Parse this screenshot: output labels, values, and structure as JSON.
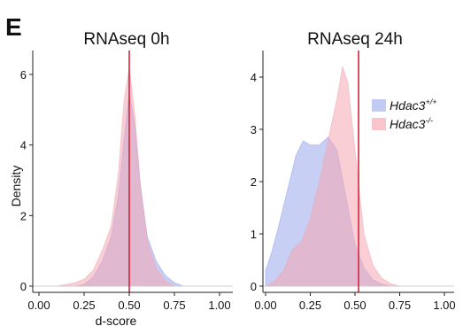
{
  "panel_label": "E",
  "shared": {
    "ylabel": "Density",
    "xlabel": "d-score",
    "colors": {
      "wild_type": "#8fa0ea",
      "knockout": "#f4a6b2",
      "overlap": "#b25c9c",
      "vline": "#d7263d"
    }
  },
  "legend": {
    "position": "top-right of right panel",
    "items": [
      {
        "base": "Hdac3",
        "sup": "+/+",
        "color": "#8fa0ea"
      },
      {
        "base": "Hdac3",
        "sup": "-/-",
        "color": "#f4a6b2"
      }
    ]
  },
  "chart_data": [
    {
      "type": "area",
      "title": "RNAseq 0h",
      "xlabel": "d-score",
      "ylabel": "Density",
      "xlim": [
        0,
        1
      ],
      "ylim": [
        -0.15,
        6.6
      ],
      "x_ticks": [
        "0.00",
        "0.25",
        "0.50",
        "0.75",
        "1.00"
      ],
      "y_ticks": [
        "0",
        "2",
        "4",
        "6"
      ],
      "x_tick_values": [
        0,
        0.25,
        0.5,
        0.75,
        1
      ],
      "y_tick_values": [
        0,
        2,
        4,
        6
      ],
      "vline": 0.5,
      "series": [
        {
          "group": "wild_type",
          "x": [
            0.2,
            0.25,
            0.3,
            0.35,
            0.4,
            0.44,
            0.47,
            0.5,
            0.53,
            0.56,
            0.6,
            0.65,
            0.7,
            0.75,
            0.8
          ],
          "y": [
            0,
            0.05,
            0.25,
            0.7,
            1.4,
            2.6,
            4.1,
            5.5,
            4.6,
            2.9,
            1.4,
            0.7,
            0.3,
            0.1,
            0
          ]
        },
        {
          "group": "knockout",
          "x": [
            0.1,
            0.15,
            0.2,
            0.25,
            0.3,
            0.35,
            0.4,
            0.44,
            0.47,
            0.5,
            0.53,
            0.56,
            0.6,
            0.65,
            0.7,
            0.75
          ],
          "y": [
            0,
            0.05,
            0.1,
            0.2,
            0.45,
            1.0,
            1.7,
            3.2,
            5.2,
            6.2,
            4.9,
            3.0,
            1.3,
            0.5,
            0.15,
            0
          ]
        }
      ]
    },
    {
      "type": "area",
      "title": "RNAseq 24h",
      "xlabel": "d-score",
      "ylabel": "",
      "xlim": [
        0,
        1
      ],
      "ylim": [
        -0.1,
        4.45
      ],
      "x_ticks": [
        "0.00",
        "0.25",
        "0.50",
        "0.75",
        "1.00"
      ],
      "y_ticks": [
        "0",
        "1",
        "2",
        "3",
        "4"
      ],
      "x_tick_values": [
        0,
        0.25,
        0.5,
        0.75,
        1
      ],
      "y_tick_values": [
        0,
        1,
        2,
        3,
        4
      ],
      "vline": 0.52,
      "series": [
        {
          "group": "wild_type",
          "x": [
            0.0,
            0.03,
            0.07,
            0.12,
            0.17,
            0.21,
            0.25,
            0.3,
            0.35,
            0.4,
            0.45,
            0.5,
            0.55,
            0.6,
            0.65,
            0.7
          ],
          "y": [
            0.3,
            0.6,
            1.1,
            1.8,
            2.5,
            2.78,
            2.7,
            2.7,
            2.85,
            2.6,
            1.7,
            0.8,
            0.35,
            0.12,
            0.04,
            0
          ]
        },
        {
          "group": "knockout",
          "x": [
            0.0,
            0.05,
            0.1,
            0.15,
            0.2,
            0.25,
            0.3,
            0.35,
            0.4,
            0.43,
            0.46,
            0.5,
            0.55,
            0.6,
            0.65,
            0.7,
            0.75
          ],
          "y": [
            0,
            0.1,
            0.3,
            0.7,
            0.85,
            1.3,
            2.0,
            2.8,
            3.6,
            4.2,
            3.9,
            2.6,
            1.0,
            0.4,
            0.15,
            0.05,
            0
          ]
        }
      ]
    }
  ]
}
